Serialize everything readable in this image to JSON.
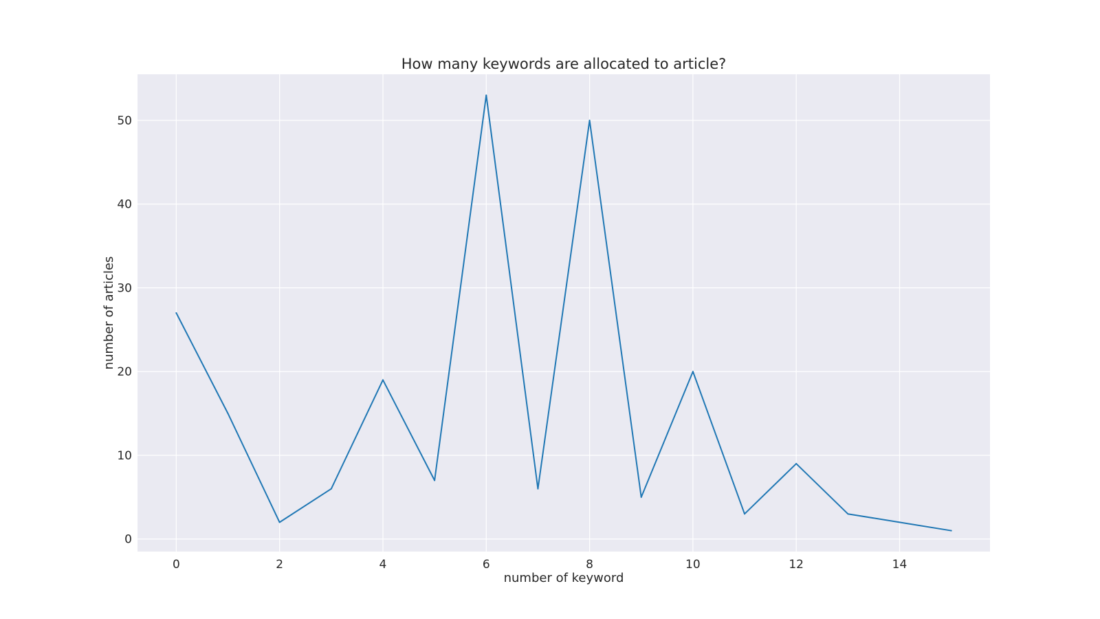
{
  "chart_data": {
    "type": "line",
    "title": "How many keywords are allocated to article?",
    "xlabel": "number of keyword",
    "ylabel": "number of articles",
    "x": [
      0,
      1,
      2,
      3,
      4,
      5,
      6,
      7,
      8,
      9,
      10,
      11,
      12,
      13,
      14,
      15
    ],
    "series": [
      {
        "values": [
          27,
          15,
          2,
          6,
          19,
          7,
          53,
          6,
          50,
          5,
          20,
          3,
          9,
          3,
          2,
          1
        ]
      }
    ],
    "xticks": [
      0,
      2,
      4,
      6,
      8,
      10,
      12,
      14
    ],
    "yticks": [
      0,
      10,
      20,
      30,
      40,
      50
    ],
    "xlim": [
      -0.75,
      15.75
    ],
    "ylim": [
      -1.5,
      55.5
    ],
    "grid": true,
    "legend": "none",
    "colors": {
      "line": "#1f77b4",
      "plot_background": "#eaeaf2",
      "grid": "#ffffff",
      "text": "#262626"
    }
  }
}
